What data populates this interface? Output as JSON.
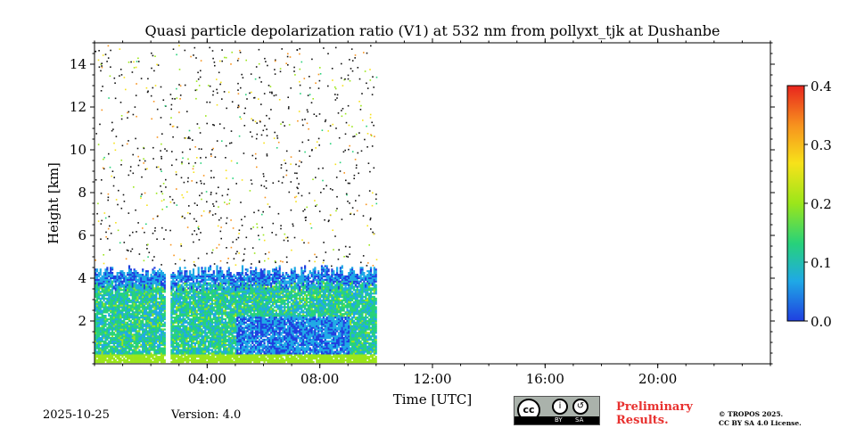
{
  "chart_data": {
    "type": "heatmap",
    "title": "Quasi particle depolarization ratio (V1) at 532 nm from pollyxt_tjk at Dushanbe",
    "xlabel": "Time [UTC]",
    "ylabel": "Height [km]",
    "xlim_hours": [
      0,
      24
    ],
    "ylim_km": [
      0,
      15
    ],
    "x_ticks": [
      {
        "hour": 4,
        "label": "04:00"
      },
      {
        "hour": 8,
        "label": "08:00"
      },
      {
        "hour": 12,
        "label": "12:00"
      },
      {
        "hour": 16,
        "label": "16:00"
      },
      {
        "hour": 20,
        "label": "20:00"
      }
    ],
    "y_ticks": [
      {
        "km": 2,
        "label": "2"
      },
      {
        "km": 4,
        "label": "4"
      },
      {
        "km": 6,
        "label": "6"
      },
      {
        "km": 8,
        "label": "8"
      },
      {
        "km": 10,
        "label": "10"
      },
      {
        "km": 12,
        "label": "12"
      },
      {
        "km": 14,
        "label": "14"
      }
    ],
    "colorbar": {
      "min": 0.0,
      "max": 0.4,
      "ticks": [
        "0.0",
        "0.1",
        "0.2",
        "0.3",
        "0.4"
      ],
      "colormap": [
        "#1f3fe0",
        "#1fa9e6",
        "#27d27a",
        "#9be61a",
        "#f7e21a",
        "#f7931e",
        "#e8251e"
      ]
    },
    "data_coverage_hours": [
      0.0,
      10.0
    ],
    "data_gap_hours": [
      2.55,
      2.65
    ],
    "aerosol_layer_top_km": 4.3,
    "grid": false
  },
  "footer": {
    "date": "2025-10-25",
    "version": "Version: 4.0",
    "preliminary": "Preliminary\nResults.",
    "license": "© TROPOS 2025.\nCC BY SA 4.0 License.",
    "cc_badge": {
      "cc": "cc",
      "by": "BY",
      "sa": "SA"
    }
  }
}
